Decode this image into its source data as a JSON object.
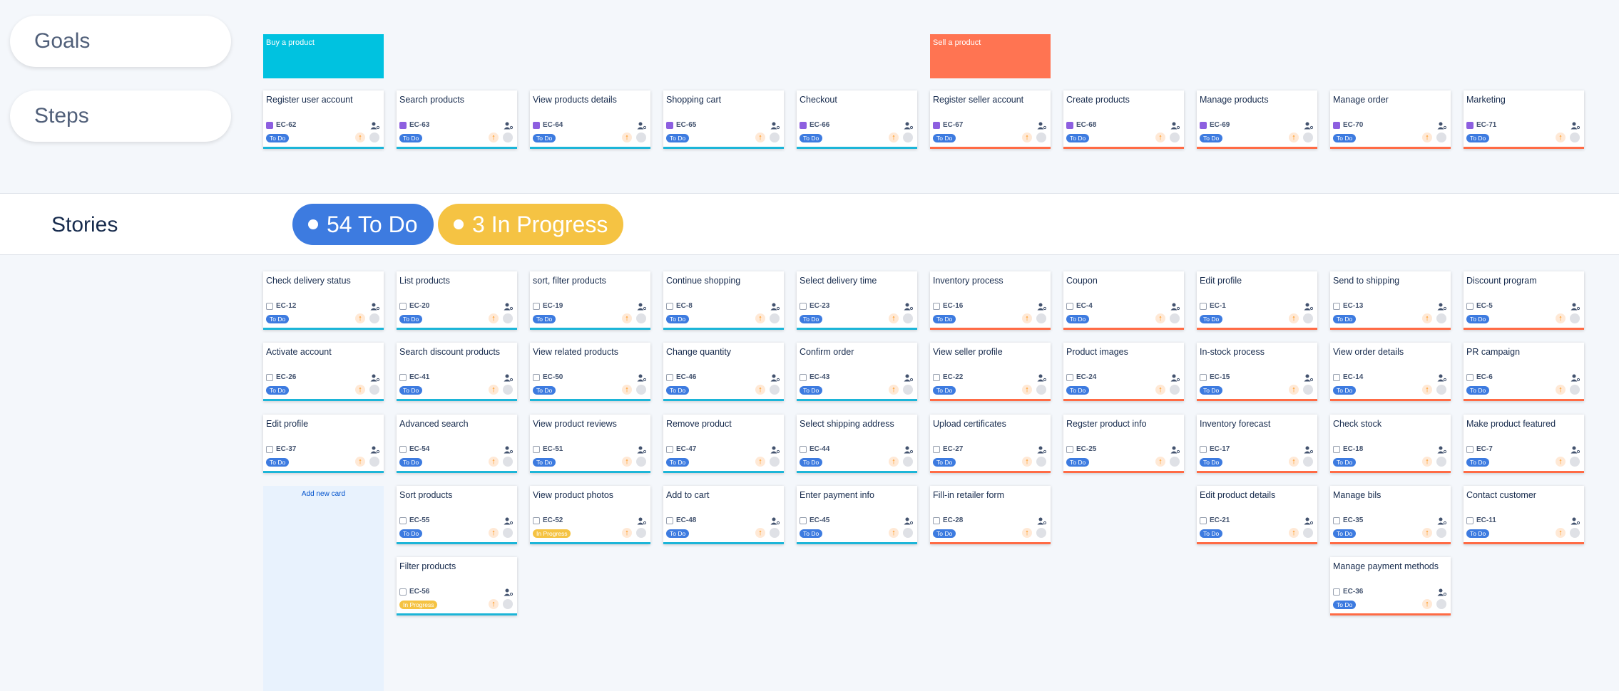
{
  "labels": {
    "goals": "Goals",
    "steps": "Steps",
    "stories": "Stories"
  },
  "summary": [
    {
      "text": "54 To Do",
      "color": "#3d7be0"
    },
    {
      "text": "3 In Progress",
      "color": "#f5c343"
    }
  ],
  "add_card": "Add new card",
  "goals": [
    {
      "title": "Buy a product",
      "color": "#00c2e0",
      "line_color": "#1cb5d8",
      "steps": [
        {
          "title": "Register user account",
          "key": "EC-62",
          "status": "To Do",
          "status_color": "#3d7be0",
          "stories": [
            {
              "title": "Check delivery status",
              "key": "EC-12",
              "status": "To Do",
              "status_color": "#3d7be0"
            },
            {
              "title": "Activate account",
              "key": "EC-26",
              "status": "To Do",
              "status_color": "#3d7be0"
            },
            {
              "title": "Edit profile",
              "key": "EC-37",
              "status": "To Do",
              "status_color": "#3d7be0"
            }
          ]
        },
        {
          "title": "Search products",
          "key": "EC-63",
          "status": "To Do",
          "status_color": "#3d7be0",
          "stories": [
            {
              "title": "List products",
              "key": "EC-20",
              "status": "To Do",
              "status_color": "#3d7be0"
            },
            {
              "title": "Search discount products",
              "key": "EC-41",
              "status": "To Do",
              "status_color": "#3d7be0"
            },
            {
              "title": "Advanced search",
              "key": "EC-54",
              "status": "To Do",
              "status_color": "#3d7be0"
            },
            {
              "title": "Sort products",
              "key": "EC-55",
              "status": "To Do",
              "status_color": "#3d7be0"
            },
            {
              "title": "Filter products",
              "key": "EC-56",
              "status": "In Progress",
              "status_color": "#f5c343"
            }
          ]
        },
        {
          "title": "View products details",
          "key": "EC-64",
          "status": "To Do",
          "status_color": "#3d7be0",
          "stories": [
            {
              "title": "sort, filter products",
              "key": "EC-19",
              "status": "To Do",
              "status_color": "#3d7be0"
            },
            {
              "title": "View related products",
              "key": "EC-50",
              "status": "To Do",
              "status_color": "#3d7be0"
            },
            {
              "title": "View product reviews",
              "key": "EC-51",
              "status": "To Do",
              "status_color": "#3d7be0"
            },
            {
              "title": "View product photos",
              "key": "EC-52",
              "status": "In Progress",
              "status_color": "#f5c343"
            }
          ]
        },
        {
          "title": "Shopping cart",
          "key": "EC-65",
          "status": "To Do",
          "status_color": "#3d7be0",
          "stories": [
            {
              "title": "Continue shopping",
              "key": "EC-8",
              "status": "To Do",
              "status_color": "#3d7be0"
            },
            {
              "title": "Change quantity",
              "key": "EC-46",
              "status": "To Do",
              "status_color": "#3d7be0"
            },
            {
              "title": "Remove product",
              "key": "EC-47",
              "status": "To Do",
              "status_color": "#3d7be0"
            },
            {
              "title": "Add to cart",
              "key": "EC-48",
              "status": "To Do",
              "status_color": "#3d7be0"
            }
          ]
        },
        {
          "title": "Checkout",
          "key": "EC-66",
          "status": "To Do",
          "status_color": "#3d7be0",
          "stories": [
            {
              "title": "Select delivery time",
              "key": "EC-23",
              "status": "To Do",
              "status_color": "#3d7be0"
            },
            {
              "title": "Confirm order",
              "key": "EC-43",
              "status": "To Do",
              "status_color": "#3d7be0"
            },
            {
              "title": "Select shipping address",
              "key": "EC-44",
              "status": "To Do",
              "status_color": "#3d7be0"
            },
            {
              "title": "Enter payment info",
              "key": "EC-45",
              "status": "To Do",
              "status_color": "#3d7be0"
            }
          ]
        }
      ]
    },
    {
      "title": "Sell a product",
      "color": "#ff7452",
      "line_color": "#ff6b45",
      "steps": [
        {
          "title": "Register seller account",
          "key": "EC-67",
          "status": "To Do",
          "status_color": "#3d7be0",
          "stories": [
            {
              "title": "Inventory process",
              "key": "EC-16",
              "status": "To Do",
              "status_color": "#3d7be0"
            },
            {
              "title": "View seller profile",
              "key": "EC-22",
              "status": "To Do",
              "status_color": "#3d7be0"
            },
            {
              "title": "Upload certificates",
              "key": "EC-27",
              "status": "To Do",
              "status_color": "#3d7be0"
            },
            {
              "title": "Fill-in retailer form",
              "key": "EC-28",
              "status": "To Do",
              "status_color": "#3d7be0"
            }
          ]
        },
        {
          "title": "Create products",
          "key": "EC-68",
          "status": "To Do",
          "status_color": "#3d7be0",
          "stories": [
            {
              "title": "Coupon",
              "key": "EC-4",
              "status": "To Do",
              "status_color": "#3d7be0"
            },
            {
              "title": "Product images",
              "key": "EC-24",
              "status": "To Do",
              "status_color": "#3d7be0"
            },
            {
              "title": "Regster product info",
              "key": "EC-25",
              "status": "To Do",
              "status_color": "#3d7be0"
            }
          ]
        },
        {
          "title": "Manage products",
          "key": "EC-69",
          "status": "To Do",
          "status_color": "#3d7be0",
          "stories": [
            {
              "title": "Edit profile",
              "key": "EC-1",
              "status": "To Do",
              "status_color": "#3d7be0"
            },
            {
              "title": "In-stock process",
              "key": "EC-15",
              "status": "To Do",
              "status_color": "#3d7be0"
            },
            {
              "title": "Inventory forecast",
              "key": "EC-17",
              "status": "To Do",
              "status_color": "#3d7be0"
            },
            {
              "title": "Edit product details",
              "key": "EC-21",
              "status": "To Do",
              "status_color": "#3d7be0"
            }
          ]
        },
        {
          "title": "Manage order",
          "key": "EC-70",
          "status": "To Do",
          "status_color": "#3d7be0",
          "stories": [
            {
              "title": "Send to shipping",
              "key": "EC-13",
              "status": "To Do",
              "status_color": "#3d7be0"
            },
            {
              "title": "View order details",
              "key": "EC-14",
              "status": "To Do",
              "status_color": "#3d7be0"
            },
            {
              "title": "Check stock",
              "key": "EC-18",
              "status": "To Do",
              "status_color": "#3d7be0"
            },
            {
              "title": "Manage bils",
              "key": "EC-35",
              "status": "To Do",
              "status_color": "#3d7be0"
            },
            {
              "title": "Manage payment methods",
              "key": "EC-36",
              "status": "To Do",
              "status_color": "#3d7be0"
            }
          ]
        },
        {
          "title": "Marketing",
          "key": "EC-71",
          "status": "To Do",
          "status_color": "#3d7be0",
          "stories": [
            {
              "title": "Discount program",
              "key": "EC-5",
              "status": "To Do",
              "status_color": "#3d7be0"
            },
            {
              "title": "PR campaign",
              "key": "EC-6",
              "status": "To Do",
              "status_color": "#3d7be0"
            },
            {
              "title": "Make product featured",
              "key": "EC-7",
              "status": "To Do",
              "status_color": "#3d7be0"
            },
            {
              "title": "Contact customer",
              "key": "EC-11",
              "status": "To Do",
              "status_color": "#3d7be0"
            }
          ]
        }
      ]
    }
  ]
}
